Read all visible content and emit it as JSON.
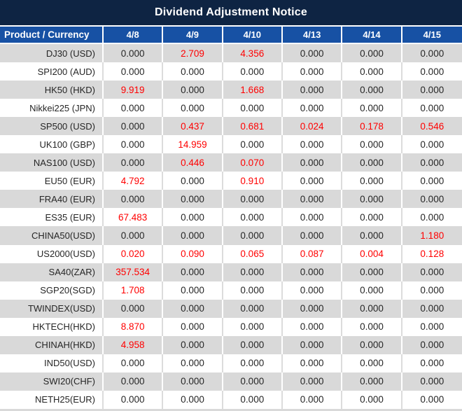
{
  "title": "Dividend Adjustment Notice",
  "colors": {
    "title_bg": "#0e2443",
    "header_bg": "#1751a4",
    "header_text": "#ffffff",
    "stripe_gray": "#d9d9d9",
    "text_dark": "#262626",
    "value_highlight": "#ff0000"
  },
  "table": {
    "header": [
      "Product / Currency",
      "4/8",
      "4/9",
      "4/10",
      "4/13",
      "4/14",
      "4/15"
    ],
    "zero_value": "0.000",
    "rows": [
      {
        "product": "DJ30 (USD)",
        "values": [
          "0.000",
          "2.709",
          "4.356",
          "0.000",
          "0.000",
          "0.000"
        ]
      },
      {
        "product": "SPI200 (AUD)",
        "values": [
          "0.000",
          "0.000",
          "0.000",
          "0.000",
          "0.000",
          "0.000"
        ]
      },
      {
        "product": "HK50 (HKD)",
        "values": [
          "9.919",
          "0.000",
          "1.668",
          "0.000",
          "0.000",
          "0.000"
        ]
      },
      {
        "product": "Nikkei225 (JPN)",
        "values": [
          "0.000",
          "0.000",
          "0.000",
          "0.000",
          "0.000",
          "0.000"
        ]
      },
      {
        "product": "SP500 (USD)",
        "values": [
          "0.000",
          "0.437",
          "0.681",
          "0.024",
          "0.178",
          "0.546"
        ]
      },
      {
        "product": "UK100 (GBP)",
        "values": [
          "0.000",
          "14.959",
          "0.000",
          "0.000",
          "0.000",
          "0.000"
        ]
      },
      {
        "product": "NAS100 (USD)",
        "values": [
          "0.000",
          "0.446",
          "0.070",
          "0.000",
          "0.000",
          "0.000"
        ]
      },
      {
        "product": "EU50 (EUR)",
        "values": [
          "4.792",
          "0.000",
          "0.910",
          "0.000",
          "0.000",
          "0.000"
        ]
      },
      {
        "product": "FRA40 (EUR)",
        "values": [
          "0.000",
          "0.000",
          "0.000",
          "0.000",
          "0.000",
          "0.000"
        ]
      },
      {
        "product": "ES35 (EUR)",
        "values": [
          "67.483",
          "0.000",
          "0.000",
          "0.000",
          "0.000",
          "0.000"
        ]
      },
      {
        "product": "CHINA50(USD)",
        "values": [
          "0.000",
          "0.000",
          "0.000",
          "0.000",
          "0.000",
          "1.180"
        ]
      },
      {
        "product": "US2000(USD)",
        "values": [
          "0.020",
          "0.090",
          "0.065",
          "0.087",
          "0.004",
          "0.128"
        ]
      },
      {
        "product": "SA40(ZAR)",
        "values": [
          "357.534",
          "0.000",
          "0.000",
          "0.000",
          "0.000",
          "0.000"
        ]
      },
      {
        "product": "SGP20(SGD)",
        "values": [
          "1.708",
          "0.000",
          "0.000",
          "0.000",
          "0.000",
          "0.000"
        ]
      },
      {
        "product": "TWINDEX(USD)",
        "values": [
          "0.000",
          "0.000",
          "0.000",
          "0.000",
          "0.000",
          "0.000"
        ]
      },
      {
        "product": "HKTECH(HKD)",
        "values": [
          "8.870",
          "0.000",
          "0.000",
          "0.000",
          "0.000",
          "0.000"
        ]
      },
      {
        "product": "CHINAH(HKD)",
        "values": [
          "4.958",
          "0.000",
          "0.000",
          "0.000",
          "0.000",
          "0.000"
        ]
      },
      {
        "product": "IND50(USD)",
        "values": [
          "0.000",
          "0.000",
          "0.000",
          "0.000",
          "0.000",
          "0.000"
        ]
      },
      {
        "product": "SWI20(CHF)",
        "values": [
          "0.000",
          "0.000",
          "0.000",
          "0.000",
          "0.000",
          "0.000"
        ]
      },
      {
        "product": "NETH25(EUR)",
        "values": [
          "0.000",
          "0.000",
          "0.000",
          "0.000",
          "0.000",
          "0.000"
        ]
      }
    ]
  }
}
